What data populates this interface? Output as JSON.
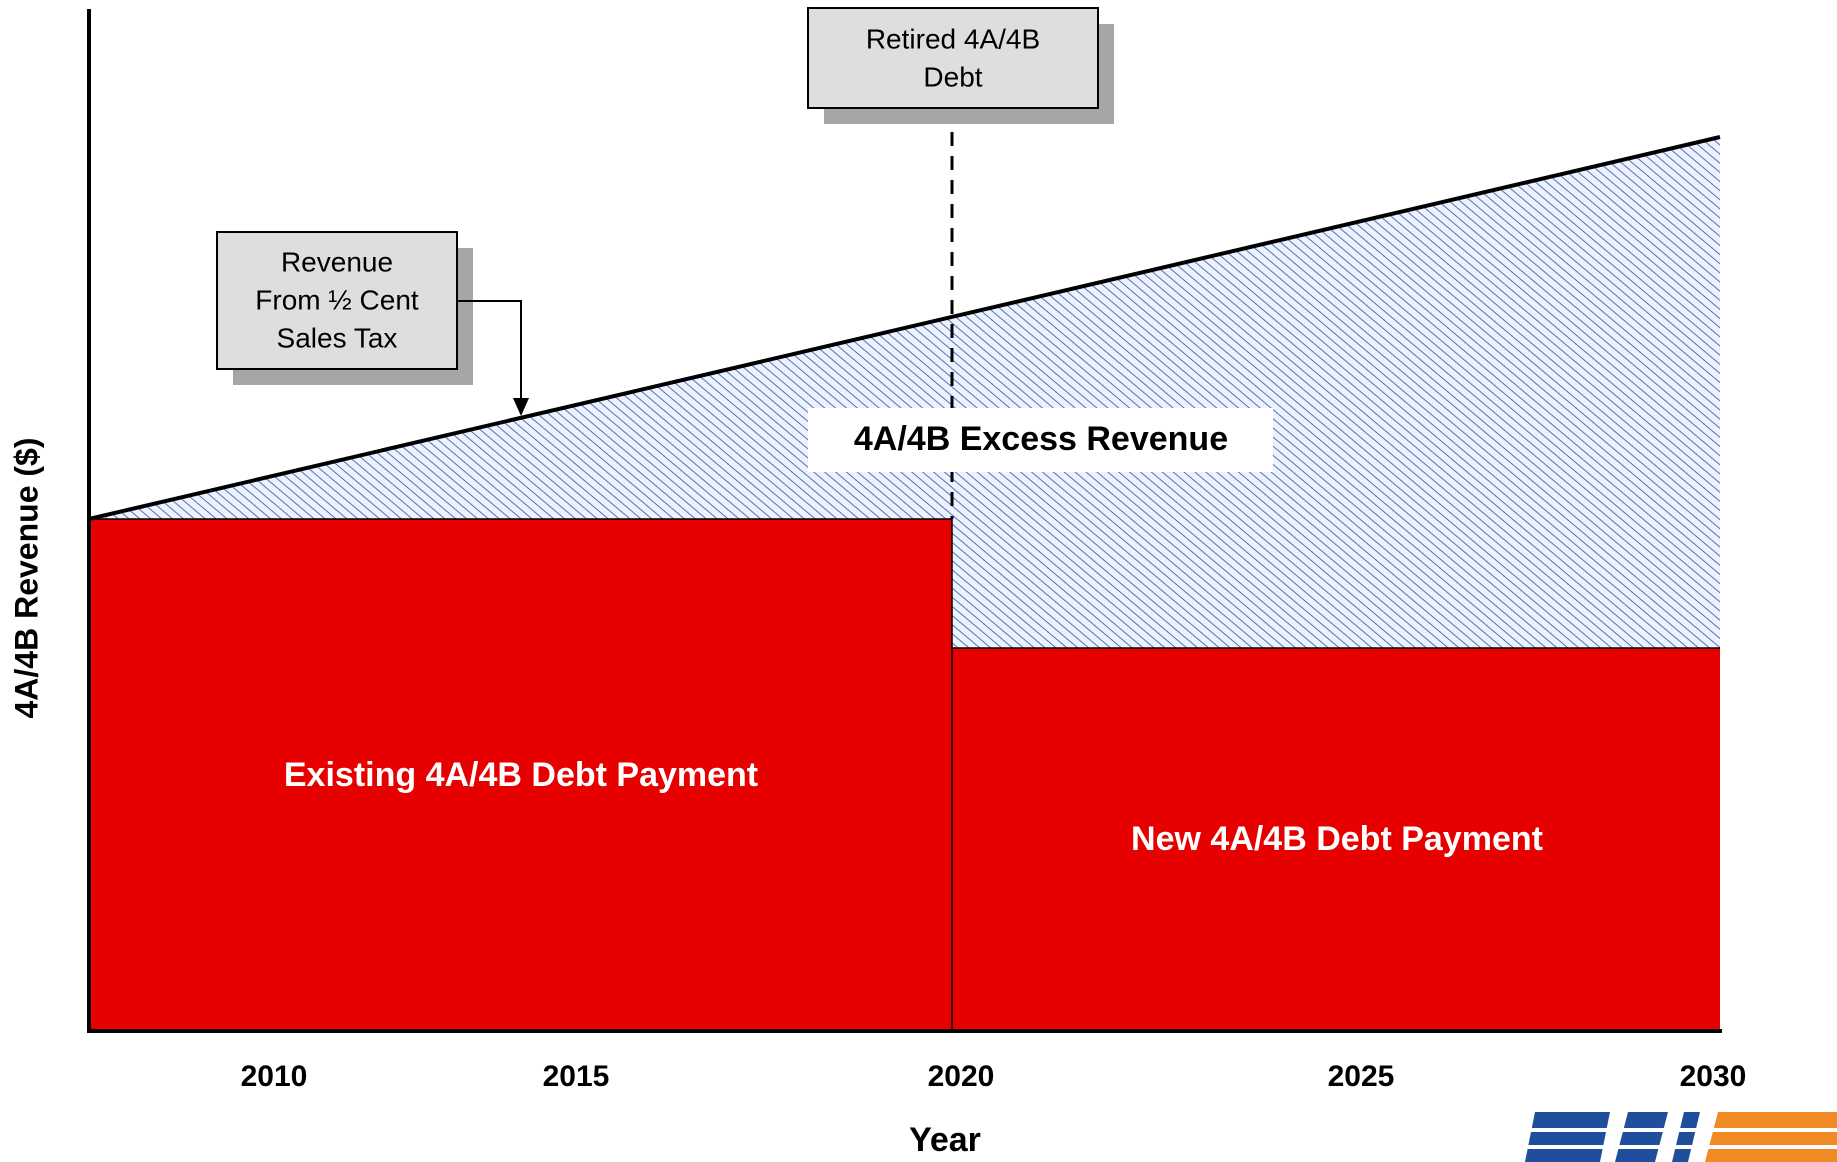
{
  "figure": {
    "y_axis": {
      "label": "4A/4B Revenue ($)"
    },
    "x_axis": {
      "label": "Year",
      "ticks": [
        2010,
        2015,
        2020,
        2025,
        2030
      ]
    },
    "callouts": {
      "retired": [
        "Retired 4A/4B",
        "Debt"
      ],
      "revenue": [
        "Revenue",
        "From ½ Cent",
        "Sales Tax"
      ]
    },
    "regions": {
      "excess": "4A/4B Excess Revenue",
      "existing": "Existing 4A/4B Debt Payment",
      "new": "New 4A/4B Debt Payment"
    }
  }
}
